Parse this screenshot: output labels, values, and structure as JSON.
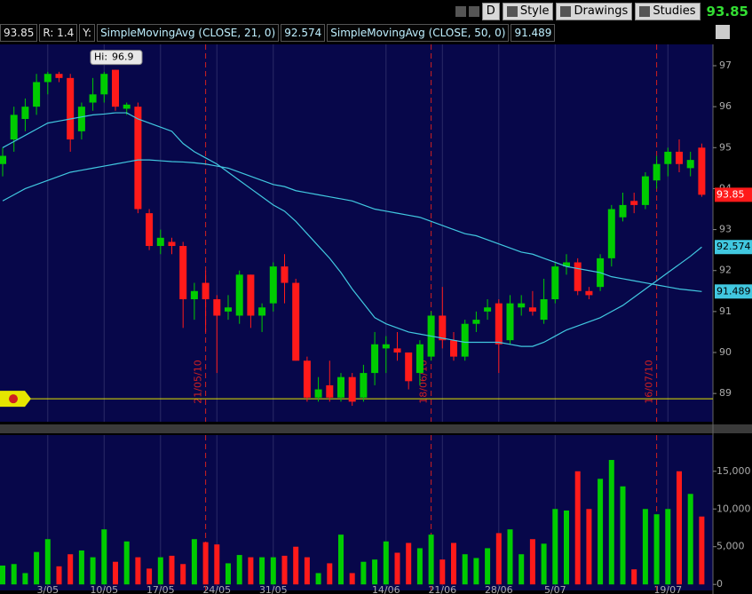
{
  "toolbar": {
    "period": "D",
    "buttons": [
      "Style",
      "Drawings",
      "Studies"
    ]
  },
  "status": {
    "ratio": "R: 1.4",
    "y_label": "Y:"
  },
  "chart_data": {
    "type": "candlestick",
    "categories": [
      null,
      null,
      null,
      null,
      "3/05",
      null,
      null,
      null,
      null,
      "10/05",
      null,
      null,
      null,
      null,
      "17/05",
      null,
      null,
      null,
      null,
      "24/05",
      null,
      null,
      null,
      null,
      "31/05",
      null,
      null,
      null,
      null,
      null,
      null,
      null,
      null,
      null,
      "14/06",
      null,
      null,
      null,
      null,
      "21/06",
      null,
      null,
      null,
      null,
      "28/06",
      null,
      null,
      null,
      null,
      "5/07",
      null,
      null,
      null,
      null,
      null,
      null,
      null,
      null,
      null,
      "19/07",
      null,
      null,
      null
    ],
    "ohlc": {
      "open": [
        94.6,
        95.2,
        95.7,
        96.0,
        96.6,
        96.8,
        96.7,
        95.4,
        96.1,
        96.3,
        96.9,
        95.95,
        96.0,
        93.4,
        92.6,
        92.7,
        92.6,
        91.3,
        91.7,
        91.3,
        91.0,
        90.9,
        91.9,
        90.9,
        91.2,
        92.1,
        91.7,
        89.8,
        88.9,
        89.2,
        88.9,
        89.4,
        88.9,
        89.5,
        90.1,
        90.1,
        90.0,
        89.5,
        89.9,
        90.9,
        90.3,
        89.9,
        90.7,
        91.0,
        91.2,
        90.3,
        91.1,
        91.1,
        90.8,
        91.3,
        92.1,
        92.2,
        91.5,
        91.6,
        92.3,
        93.3,
        93.7,
        93.6,
        94.2,
        94.6,
        94.9,
        94.5,
        95.0
      ],
      "high": [
        95.0,
        96.0,
        96.2,
        96.8,
        96.85,
        96.85,
        96.8,
        96.1,
        96.7,
        96.85,
        96.9,
        96.1,
        96.1,
        93.5,
        93.0,
        92.8,
        92.7,
        91.7,
        92.0,
        91.4,
        91.4,
        92.0,
        91.9,
        91.2,
        92.2,
        92.4,
        91.8,
        89.9,
        89.4,
        89.8,
        89.5,
        89.5,
        89.7,
        90.5,
        90.4,
        90.5,
        90.0,
        90.3,
        91.0,
        91.6,
        90.5,
        90.8,
        91.0,
        91.3,
        91.3,
        91.4,
        91.4,
        91.5,
        91.8,
        92.2,
        92.4,
        92.3,
        91.6,
        92.4,
        93.6,
        93.9,
        93.9,
        94.4,
        94.8,
        95.0,
        95.2,
        94.9,
        95.1
      ],
      "low": [
        94.3,
        94.9,
        95.4,
        95.8,
        96.3,
        96.6,
        94.9,
        95.2,
        95.9,
        96.1,
        95.9,
        95.8,
        93.4,
        92.5,
        92.4,
        92.4,
        90.6,
        90.8,
        90.5,
        89.5,
        90.8,
        90.7,
        90.6,
        90.5,
        91.0,
        91.2,
        89.8,
        88.8,
        88.8,
        88.8,
        88.8,
        88.7,
        88.8,
        89.2,
        89.5,
        89.8,
        89.1,
        89.2,
        89.8,
        90.1,
        89.8,
        89.8,
        90.5,
        90.8,
        89.5,
        90.2,
        90.9,
        90.9,
        90.7,
        91.2,
        91.9,
        91.4,
        91.3,
        91.5,
        92.1,
        93.2,
        93.4,
        93.5,
        94.0,
        94.3,
        94.4,
        94.3,
        93.8
      ],
      "close": [
        94.8,
        95.8,
        96.0,
        96.6,
        96.8,
        96.7,
        95.2,
        96.0,
        96.3,
        96.8,
        96.0,
        96.05,
        93.5,
        92.6,
        92.8,
        92.6,
        91.3,
        91.5,
        91.3,
        90.9,
        91.1,
        91.9,
        90.9,
        91.1,
        92.1,
        91.7,
        89.8,
        88.9,
        89.1,
        88.9,
        89.4,
        88.8,
        89.5,
        90.2,
        90.2,
        90.0,
        89.3,
        90.2,
        90.9,
        90.3,
        89.9,
        90.7,
        90.8,
        91.1,
        90.2,
        91.2,
        91.2,
        91.0,
        91.3,
        92.1,
        92.2,
        91.5,
        91.4,
        92.3,
        93.5,
        93.6,
        93.6,
        94.3,
        94.6,
        94.9,
        94.6,
        94.7,
        93.85
      ]
    },
    "up_color": "#00cc00",
    "down_color": "#ff1a1a",
    "ylim": [
      88.31,
      97.52
    ],
    "yticks": [
      89,
      90,
      91,
      92,
      93,
      94,
      95,
      96,
      97
    ],
    "series": [
      {
        "name": "SimpleMovingAvg (CLOSE, 21, 0)",
        "color": "#41c8e0",
        "values": [
          95.0,
          95.15,
          95.3,
          95.45,
          95.6,
          95.65,
          95.7,
          95.75,
          95.8,
          95.82,
          95.85,
          95.85,
          95.7,
          95.6,
          95.5,
          95.4,
          95.1,
          94.9,
          94.75,
          94.6,
          94.4,
          94.2,
          94.0,
          93.8,
          93.6,
          93.45,
          93.2,
          92.9,
          92.6,
          92.3,
          91.95,
          91.55,
          91.2,
          90.85,
          90.7,
          90.6,
          90.5,
          90.45,
          90.4,
          90.35,
          90.3,
          90.25,
          90.25,
          90.25,
          90.25,
          90.2,
          90.15,
          90.15,
          90.25,
          90.4,
          90.55,
          90.65,
          90.75,
          90.85,
          91.0,
          91.15,
          91.35,
          91.55,
          91.75,
          91.95,
          92.15,
          92.35,
          92.574
        ]
      },
      {
        "name": "SimpleMovingAvg (CLOSE, 50, 0)",
        "color": "#41c8e0",
        "values": [
          93.7,
          93.85,
          94.0,
          94.1,
          94.2,
          94.3,
          94.4,
          94.45,
          94.5,
          94.55,
          94.6,
          94.65,
          94.7,
          94.7,
          94.68,
          94.66,
          94.65,
          94.63,
          94.6,
          94.55,
          94.5,
          94.4,
          94.3,
          94.2,
          94.1,
          94.05,
          93.95,
          93.9,
          93.85,
          93.8,
          93.75,
          93.7,
          93.6,
          93.5,
          93.45,
          93.4,
          93.35,
          93.3,
          93.2,
          93.1,
          93.0,
          92.9,
          92.85,
          92.75,
          92.65,
          92.55,
          92.45,
          92.4,
          92.3,
          92.2,
          92.1,
          92.05,
          92.0,
          91.95,
          91.85,
          91.8,
          91.75,
          91.7,
          91.65,
          91.6,
          91.55,
          91.52,
          91.489
        ]
      }
    ],
    "hi_label": "Hi:",
    "alert_line": 88.87,
    "alert_color": "#e6e600",
    "event_lines": [
      {
        "at": 18,
        "label": "21/05/10"
      },
      {
        "at": 38,
        "label": "18/06/10"
      },
      {
        "at": 58,
        "label": "16/07/10"
      }
    ],
    "event_color": "#d02020",
    "volume": {
      "values": [
        2500,
        2700,
        1500,
        4300,
        6000,
        2400,
        4000,
        4500,
        3600,
        7300,
        3000,
        5700,
        3600,
        2100,
        3600,
        3800,
        2700,
        6000,
        5600,
        5300,
        2800,
        3900,
        3600,
        3600,
        3600,
        3800,
        5000,
        3600,
        1500,
        2800,
        6600,
        1500,
        3000,
        3300,
        5700,
        4200,
        5500,
        4800,
        6600,
        3300,
        5500,
        4000,
        3500,
        4800,
        6800,
        7300,
        4000,
        6000,
        5400,
        10000,
        9800,
        15000,
        10000,
        14000,
        16500,
        13000,
        2000,
        10000,
        9300,
        10000,
        15000,
        12000,
        9000
      ],
      "ylim": [
        -800,
        19800
      ],
      "yticks": [
        0,
        {
          "value": 5000,
          "label": "5,000"
        },
        {
          "value": 10000,
          "label": "10,000"
        },
        {
          "value": 15000,
          "label": "15,000"
        }
      ]
    }
  }
}
